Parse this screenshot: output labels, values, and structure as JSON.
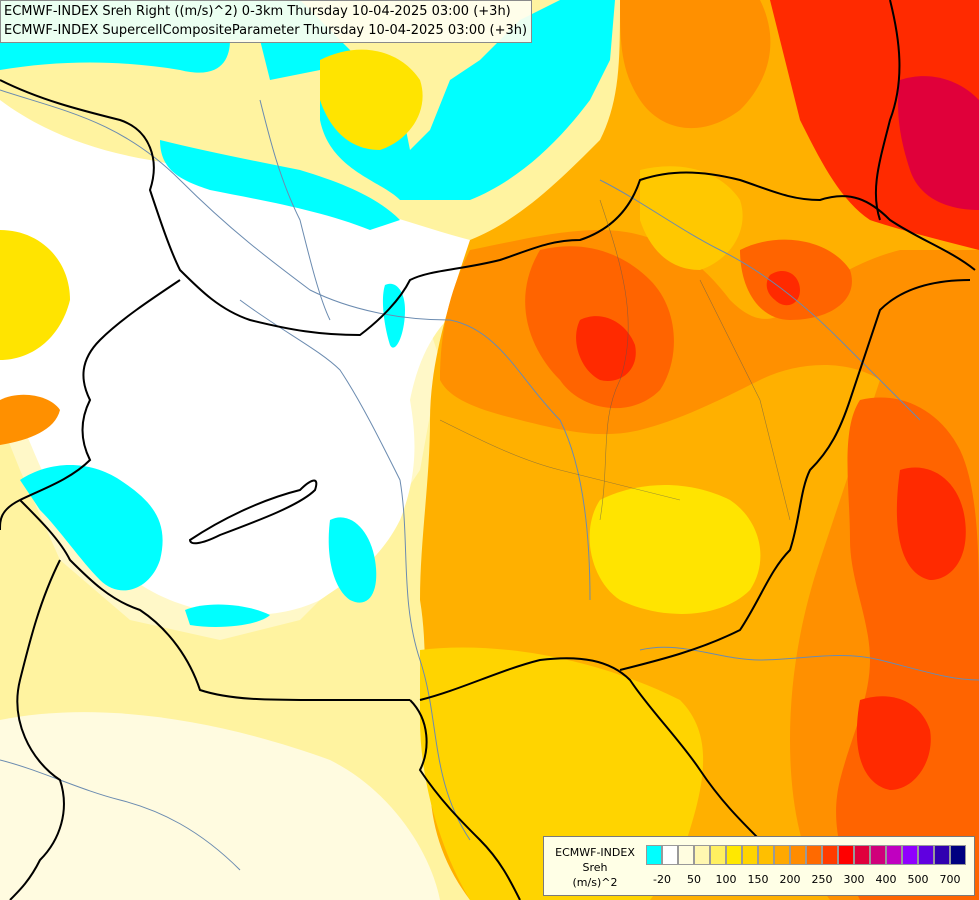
{
  "header": {
    "line1": "ECMWF-INDEX Sreh Right ((m/s)^2) 0-3km Thursday 10-04-2025 03:00 (+3h)",
    "line2": "ECMWF-INDEX SupercellCompositeParameter Thursday 10-04-2025 03:00 (+3h)"
  },
  "legend": {
    "title_lines": [
      "ECMWF-INDEX",
      "Sreh",
      "(m/s)^2"
    ],
    "swatch_colors": [
      "#00ffff",
      "#ffffff",
      "#fffde0",
      "#fff7b0",
      "#fff060",
      "#ffe800",
      "#ffd400",
      "#ffbf00",
      "#ffa800",
      "#ff8c00",
      "#ff6a00",
      "#ff3c00",
      "#ff0000",
      "#e0003c",
      "#d0007a",
      "#c000c0",
      "#9000ff",
      "#6000e0",
      "#3000b0",
      "#000080"
    ],
    "tick_labels": [
      "-20",
      "50",
      "100",
      "150",
      "200",
      "250",
      "300",
      "400",
      "500",
      "700"
    ]
  },
  "colors": {
    "cyan": "#00ffff",
    "white": "#ffffff",
    "pale_yellow": "#fff8c8",
    "light_yellow": "#fff07a",
    "yellow": "#ffe400",
    "gold": "#ffc800",
    "orange_light": "#ffb000",
    "orange": "#ff9000",
    "orange_dark": "#ff6400",
    "red": "#ff2a00",
    "crimson": "#e0003a",
    "border": "#000000",
    "river": "#6b8bb0"
  }
}
